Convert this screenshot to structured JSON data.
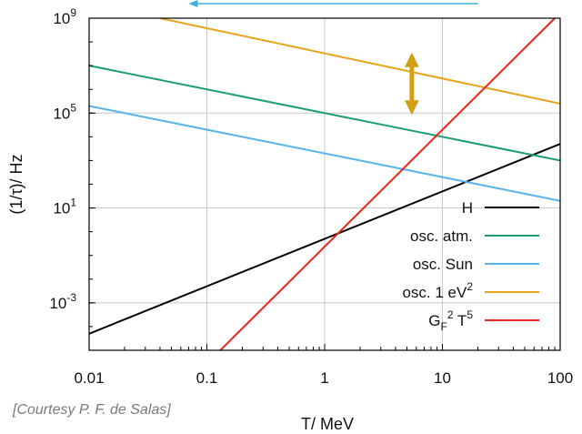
{
  "chart_data": {
    "type": "line",
    "xlabel": "T/ MeV",
    "ylabel": "(1/τ)/ Hz",
    "xscale": "log",
    "yscale": "log",
    "xlim": [
      0.01,
      100
    ],
    "ylim": [
      1e-05,
      1000000000
    ],
    "x_ticks": [
      {
        "value": 0.01,
        "label": "0.01"
      },
      {
        "value": 0.1,
        "label": "0.1"
      },
      {
        "value": 1,
        "label": "1"
      },
      {
        "value": 10,
        "label": "10"
      },
      {
        "value": 100,
        "label": "100"
      }
    ],
    "y_ticks": [
      {
        "value": 0.001,
        "base": "10",
        "exp": "-3"
      },
      {
        "value": 10,
        "base": "10",
        "exp": "1"
      },
      {
        "value": 100000,
        "base": "10",
        "exp": "5"
      },
      {
        "value": 1000000000,
        "base": "10",
        "exp": "9"
      }
    ],
    "grid": true,
    "legend_position": "bottom-right",
    "series": [
      {
        "name": "H",
        "color": "#000000",
        "x": [
          0.01,
          100
        ],
        "y": [
          5e-05,
          5000
        ]
      },
      {
        "name": "osc. atm.",
        "color": "#1a9e72",
        "x": [
          0.01,
          100
        ],
        "y": [
          10000000,
          1000
        ]
      },
      {
        "name": "osc. Sun",
        "color": "#56b4e9",
        "x": [
          0.01,
          100
        ],
        "y": [
          200000,
          20
        ]
      },
      {
        "name": "osc. 1 eV²",
        "color": "#e6a41a",
        "x": [
          0.04,
          100
        ],
        "y": [
          1000000000,
          250000
        ]
      },
      {
        "name": "GF² T⁵",
        "color": "#e8271f",
        "x": [
          0.13,
          90
        ],
        "y": [
          1e-05,
          1000000000
        ]
      }
    ],
    "legend": [
      {
        "parts": [
          {
            "t": "H"
          }
        ]
      },
      {
        "parts": [
          {
            "t": "osc. atm."
          }
        ]
      },
      {
        "parts": [
          {
            "t": "osc. Sun"
          }
        ]
      },
      {
        "parts": [
          {
            "t": "osc. 1 eV"
          },
          {
            "t": "2",
            "sup": true
          }
        ]
      },
      {
        "parts": [
          {
            "t": "G"
          },
          {
            "t": "F",
            "sub": true
          },
          {
            "t": "2",
            "sup": true
          },
          {
            "t": " T"
          },
          {
            "t": "5",
            "sup": true
          }
        ]
      }
    ],
    "annotations": [
      {
        "type": "double-arrow-vertical",
        "color": "#d4a017",
        "x": 5.5,
        "y_from": 100000,
        "y_to": 30000000
      },
      {
        "type": "arrow-left",
        "color": "#3daee0",
        "x_from": 0.07,
        "x_to": 20,
        "y": 1000000000
      }
    ]
  },
  "credit": "[Courtesy P. F. de Salas]"
}
